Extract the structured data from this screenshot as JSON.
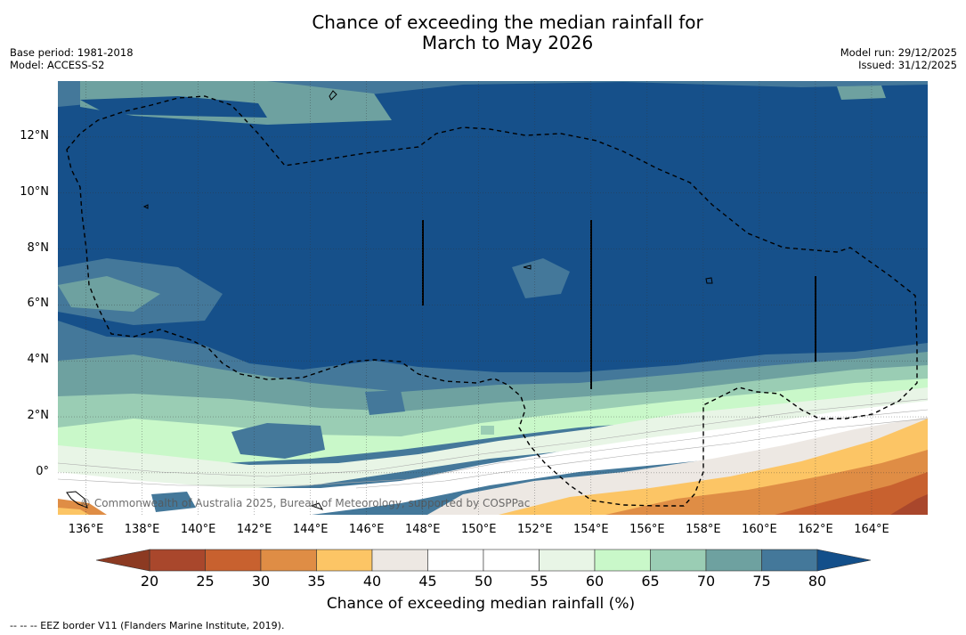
{
  "title": {
    "line1": "Chance of exceeding the median rainfall for",
    "line2": "March to May 2026"
  },
  "meta_left": {
    "base_period": "Base period: 1981-2018",
    "model": "Model: ACCESS-S2"
  },
  "meta_right": {
    "model_run": "Model run: 29/12/2025",
    "issued": "Issued: 31/12/2025"
  },
  "map": {
    "lon_range": [
      135,
      166
    ],
    "lat_range": [
      -1.5,
      14
    ],
    "x_ticks": [
      "136°E",
      "138°E",
      "140°E",
      "142°E",
      "144°E",
      "146°E",
      "148°E",
      "150°E",
      "152°E",
      "154°E",
      "156°E",
      "158°E",
      "160°E",
      "162°E",
      "164°E"
    ],
    "y_ticks": [
      "12°N",
      "10°N",
      "8°N",
      "6°N",
      "4°N",
      "2°N",
      "0°"
    ],
    "copyright": "© Commonwealth of Australia 2025, Bureau of Meteorology, supported by COSPPac"
  },
  "colorbar": {
    "ticks": [
      "20",
      "25",
      "30",
      "35",
      "40",
      "45",
      "50",
      "55",
      "60",
      "65",
      "70",
      "75",
      "80"
    ],
    "colors": [
      "#a9472c",
      "#c8612f",
      "#df8d45",
      "#fcc565",
      "#ede8e3",
      "#ffffff",
      "#ffffff",
      "#e8f5e6",
      "#c9f8c9",
      "#9acdb4",
      "#6ea1a0",
      "#44789a",
      "#16508a"
    ],
    "label": "Chance of exceeding median rainfall (%)",
    "extend_low_color": "#8c3a22",
    "extend_high_color": "#134f8a"
  },
  "legend": {
    "eez": "--  --  -- EEZ border V11 (Flanders Marine Institute, 2019)."
  }
}
